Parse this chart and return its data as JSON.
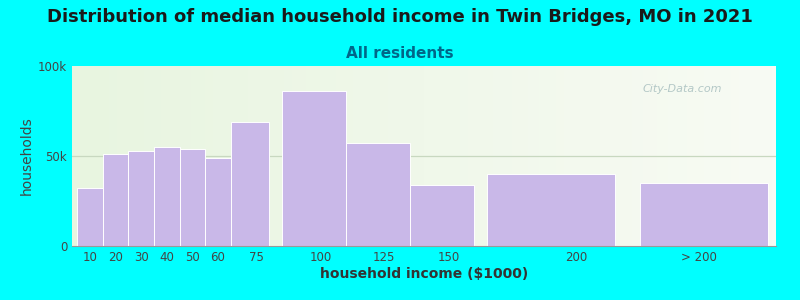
{
  "title": "Distribution of median household income in Twin Bridges, MO in 2021",
  "subtitle": "All residents",
  "xlabel": "household income ($1000)",
  "ylabel": "households",
  "background_color": "#00FFFF",
  "bar_color": "#c9b8e8",
  "bar_edge_color": "#ffffff",
  "bar_widths": [
    10,
    10,
    10,
    10,
    10,
    10,
    15,
    25,
    25,
    25,
    50,
    50
  ],
  "bar_lefts": [
    5,
    15,
    25,
    35,
    45,
    55,
    65,
    85,
    110,
    135,
    165,
    225
  ],
  "values": [
    32000,
    51000,
    53000,
    55000,
    54000,
    49000,
    69000,
    86000,
    57000,
    34000,
    40000,
    35000
  ],
  "xlim_left": 3,
  "xlim_right": 278,
  "ylim": [
    0,
    100000
  ],
  "yticks": [
    0,
    50000,
    100000
  ],
  "ytick_labels": [
    "0",
    "50k",
    "100k"
  ],
  "xtick_positions": [
    10,
    20,
    30,
    40,
    50,
    60,
    75,
    100,
    125,
    150,
    200,
    248
  ],
  "xtick_labels": [
    "10",
    "20",
    "30",
    "40",
    "50",
    "60",
    "75",
    "100",
    "125",
    "150",
    "200",
    "> 200"
  ],
  "title_fontsize": 13,
  "subtitle_fontsize": 11,
  "axis_label_fontsize": 10,
  "tick_fontsize": 8.5,
  "watermark_text": "City-Data.com",
  "watermark_color": "#a8bfbf",
  "title_color": "#1a1a1a",
  "subtitle_color": "#006688",
  "ylabel_color": "#444444",
  "xlabel_color": "#333333",
  "grid50_color": "#c8d8c0",
  "plot_bg_left": "#e8f5e0",
  "plot_bg_right": "#f8fbf4"
}
